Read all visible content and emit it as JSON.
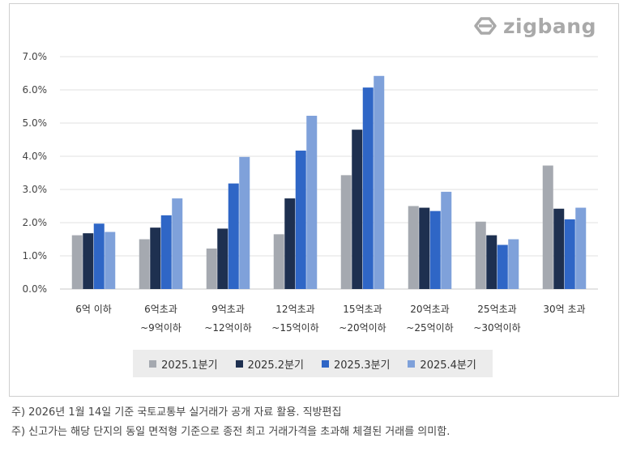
{
  "brand": {
    "name": "zigbang"
  },
  "chart_data": {
    "type": "bar",
    "categories": [
      [
        "6억 이하"
      ],
      [
        "6억초과",
        "~9억이하"
      ],
      [
        "9억초과",
        "~12억이하"
      ],
      [
        "12억초과",
        "~15억이하"
      ],
      [
        "15억초과",
        "~20억이하"
      ],
      [
        "20억초과",
        "~25억이하"
      ],
      [
        "25억초과",
        "~30억이하"
      ],
      [
        "30억 초과"
      ]
    ],
    "series": [
      {
        "name": "2025.1분기",
        "color": "#a5a9b0",
        "values": [
          1.62,
          1.5,
          1.22,
          1.65,
          3.43,
          2.5,
          2.03,
          3.72
        ]
      },
      {
        "name": "2025.2분기",
        "color": "#1e3050",
        "values": [
          1.68,
          1.85,
          1.82,
          2.73,
          4.8,
          2.45,
          1.62,
          2.42
        ]
      },
      {
        "name": "2025.3분기",
        "color": "#2f66c6",
        "values": [
          1.97,
          2.22,
          3.18,
          4.17,
          6.07,
          2.35,
          1.33,
          2.1
        ]
      },
      {
        "name": "2025.4분기",
        "color": "#7fa1da",
        "values": [
          1.72,
          2.73,
          3.98,
          5.22,
          6.42,
          2.93,
          1.5,
          2.45
        ]
      }
    ],
    "yticks": [
      "0.0%",
      "1.0%",
      "2.0%",
      "3.0%",
      "4.0%",
      "5.0%",
      "6.0%",
      "7.0%"
    ],
    "ylim": [
      0,
      7
    ],
    "grid": true,
    "legend_position": "bottom"
  },
  "notes": [
    "주) 2026년 1월 14일 기준 국토교통부 실거래가 공개 자료 활용. 직방편집",
    "주) 신고가는 해당 단지의 동일 면적형 기준으로 종전 최고 거래가격을 초과해 체결된 거래를 의미함."
  ]
}
